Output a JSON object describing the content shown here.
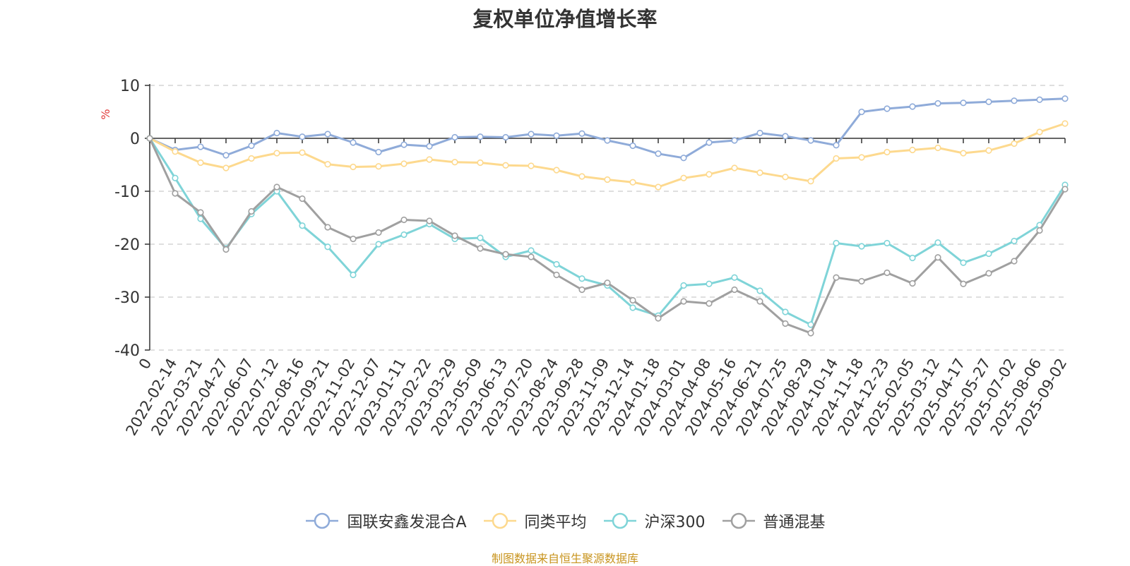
{
  "chart_data": {
    "type": "line",
    "title": "复权单位净值增长率",
    "ylabel": "%",
    "ylim": [
      -40,
      10
    ],
    "yticks": [
      10,
      0,
      -10,
      -20,
      -30,
      -40
    ],
    "grid": true,
    "legend_position": "bottom",
    "x_tick_labels": [
      "0",
      "2022-02-14",
      "2022-03-21",
      "2022-04-27",
      "2022-06-07",
      "2022-07-12",
      "2022-08-16",
      "2022-09-21",
      "2022-11-02",
      "2022-12-07",
      "2023-01-11",
      "2023-02-22",
      "2023-03-29",
      "2023-05-09",
      "2023-06-13",
      "2023-07-20",
      "2023-08-24",
      "2023-09-28",
      "2023-11-09",
      "2023-12-14",
      "2024-01-18",
      "2024-03-01",
      "2024-04-08",
      "2024-05-16",
      "2024-06-21",
      "2024-07-25",
      "2024-08-29",
      "2024-10-14",
      "2024-11-18",
      "2024-12-23",
      "2025-02-05",
      "2025-03-12",
      "2025-04-17",
      "2025-05-27",
      "2025-07-02",
      "2025-08-06",
      "2025-09-02"
    ],
    "series": [
      {
        "name": "国联安鑫发混合A",
        "color": "#8fabd9",
        "values": [
          0,
          -2.2,
          -1.6,
          -3.2,
          -1.4,
          1.0,
          0.3,
          0.8,
          -0.8,
          -2.6,
          -1.2,
          -1.5,
          0.2,
          0.3,
          0.2,
          0.8,
          0.5,
          0.9,
          -0.4,
          -1.4,
          -2.9,
          -3.7,
          -0.8,
          -0.4,
          1.0,
          0.4,
          -0.4,
          -1.3,
          5.0,
          5.6,
          6.0,
          6.6,
          6.7,
          6.9,
          7.1,
          7.3,
          7.5
        ]
      },
      {
        "name": "同类平均",
        "color": "#fdd98e",
        "values": [
          0,
          -2.5,
          -4.6,
          -5.6,
          -3.8,
          -2.8,
          -2.7,
          -4.9,
          -5.4,
          -5.3,
          -4.8,
          -4.0,
          -4.5,
          -4.6,
          -5.1,
          -5.2,
          -6.0,
          -7.2,
          -7.8,
          -8.3,
          -9.2,
          -7.5,
          -6.8,
          -5.6,
          -6.5,
          -7.3,
          -8.1,
          -3.8,
          -3.6,
          -2.6,
          -2.2,
          -1.8,
          -2.8,
          -2.3,
          -1.0,
          1.2,
          2.8
        ]
      },
      {
        "name": "沪深300",
        "color": "#7fd4d8",
        "values": [
          0,
          -7.5,
          -15.2,
          -20.8,
          -14.3,
          -10.0,
          -16.5,
          -20.5,
          -25.8,
          -20.0,
          -18.2,
          -16.2,
          -19.0,
          -18.8,
          -22.4,
          -21.2,
          -23.8,
          -26.5,
          -27.8,
          -32.0,
          -33.5,
          -27.8,
          -27.5,
          -26.3,
          -28.8,
          -32.8,
          -35.2,
          -19.8,
          -20.4,
          -19.8,
          -22.6,
          -19.7,
          -23.5,
          -21.8,
          -19.4,
          -16.4,
          -8.8
        ]
      },
      {
        "name": "普通混基",
        "color": "#a0a0a0",
        "values": [
          0,
          -10.4,
          -14.0,
          -21.0,
          -13.8,
          -9.2,
          -11.4,
          -16.8,
          -19.0,
          -17.8,
          -15.4,
          -15.6,
          -18.4,
          -20.8,
          -21.9,
          -22.4,
          -25.8,
          -28.6,
          -27.3,
          -30.6,
          -34.0,
          -30.8,
          -31.2,
          -28.6,
          -30.8,
          -35.0,
          -36.8,
          -26.3,
          -27.0,
          -25.4,
          -27.4,
          -22.5,
          -27.5,
          -25.5,
          -23.2,
          -17.4,
          -9.6
        ]
      }
    ]
  },
  "source_note": "制图数据来自恒生聚源数据库",
  "colors": {
    "axis": "#333333",
    "grid": "#cccccc",
    "ylabel": "#e23b3b",
    "source_note": "#c8941e"
  }
}
